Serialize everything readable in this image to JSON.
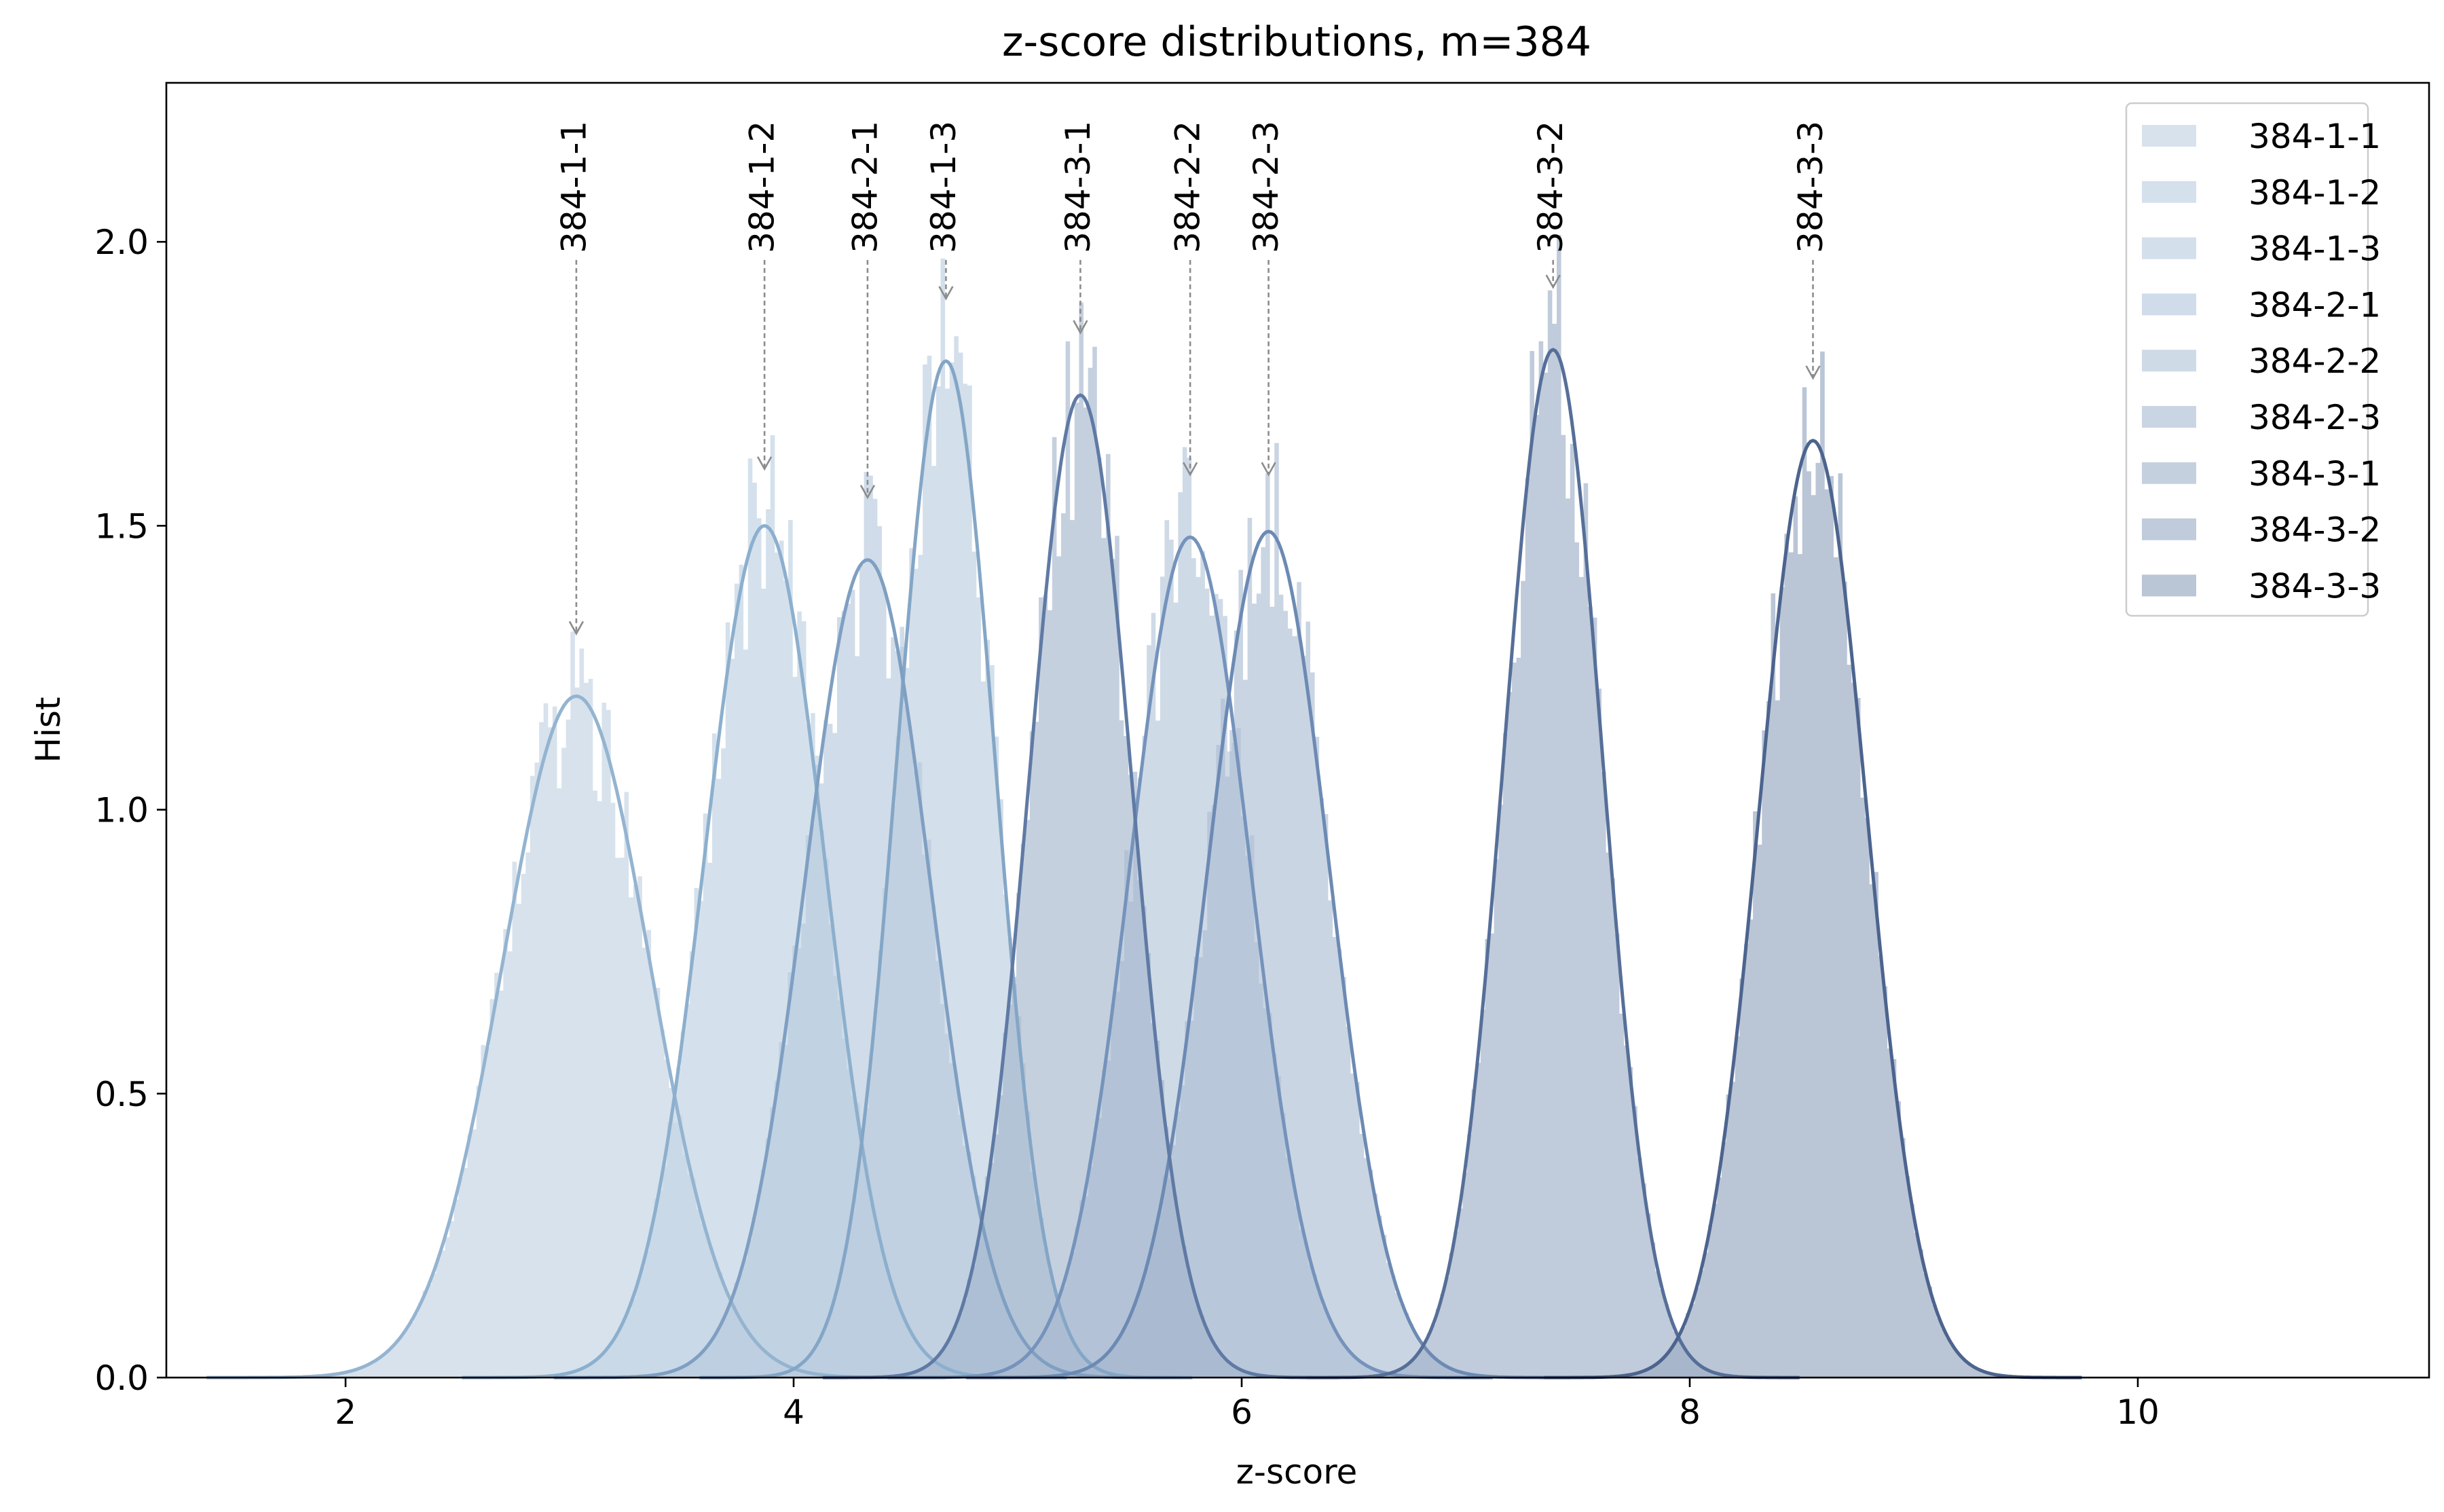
{
  "chart_data": {
    "type": "histogram",
    "title": "z-score distributions, m=384",
    "xlabel": "z-score",
    "ylabel": "Hist",
    "xlim": [
      1.2,
      11.3
    ],
    "ylim": [
      0.0,
      2.28
    ],
    "xticks": [
      2,
      4,
      6,
      8,
      10
    ],
    "xtick_labels": [
      "2",
      "4",
      "6",
      "8",
      "10"
    ],
    "yticks": [
      0.0,
      0.5,
      1.0,
      1.5,
      2.0
    ],
    "ytick_labels": [
      "0.0",
      "0.5",
      "1.0",
      "1.5",
      "2.0"
    ],
    "grid": false,
    "legend_position": "top-right",
    "series": [
      {
        "name": "384-1-1",
        "mean": 3.03,
        "sd": 0.33,
        "peak": 1.2,
        "color": "#94b4d0",
        "fill": "#c9d8e7",
        "fill_opacity": 0.75,
        "annotation_y": 1.31
      },
      {
        "name": "384-1-2",
        "mean": 3.87,
        "sd": 0.27,
        "peak": 1.5,
        "color": "#8cafcd",
        "fill": "#c4d5e5",
        "fill_opacity": 0.72,
        "annotation_y": 1.6
      },
      {
        "name": "384-1-3",
        "mean": 4.68,
        "sd": 0.22,
        "peak": 1.79,
        "color": "#84a6c6",
        "fill": "#c0d1e2",
        "fill_opacity": 0.7,
        "annotation_y": 1.9
      },
      {
        "name": "384-2-1",
        "mean": 4.33,
        "sd": 0.28,
        "peak": 1.44,
        "color": "#7f9fc2",
        "fill": "#b8cade",
        "fill_opacity": 0.66,
        "annotation_y": 1.55
      },
      {
        "name": "384-2-2",
        "mean": 5.77,
        "sd": 0.27,
        "peak": 1.48,
        "color": "#7593bb",
        "fill": "#b1c3d9",
        "fill_opacity": 0.62,
        "annotation_y": 1.59
      },
      {
        "name": "384-2-3",
        "mean": 6.12,
        "sd": 0.27,
        "peak": 1.49,
        "color": "#6c8ab3",
        "fill": "#a9bbd2",
        "fill_opacity": 0.62,
        "annotation_y": 1.59
      },
      {
        "name": "384-3-1",
        "mean": 5.28,
        "sd": 0.23,
        "peak": 1.73,
        "color": "#5f7aa4",
        "fill": "#a2b3cc",
        "fill_opacity": 0.62,
        "annotation_y": 1.84
      },
      {
        "name": "384-3-2",
        "mean": 7.39,
        "sd": 0.22,
        "peak": 1.81,
        "color": "#566f99",
        "fill": "#9fb0c8",
        "fill_opacity": 0.66,
        "annotation_y": 1.92
      },
      {
        "name": "384-3-3",
        "mean": 8.55,
        "sd": 0.24,
        "peak": 1.65,
        "color": "#4c648e",
        "fill": "#9dadc5",
        "fill_opacity": 0.7,
        "annotation_y": 1.76
      }
    ]
  }
}
